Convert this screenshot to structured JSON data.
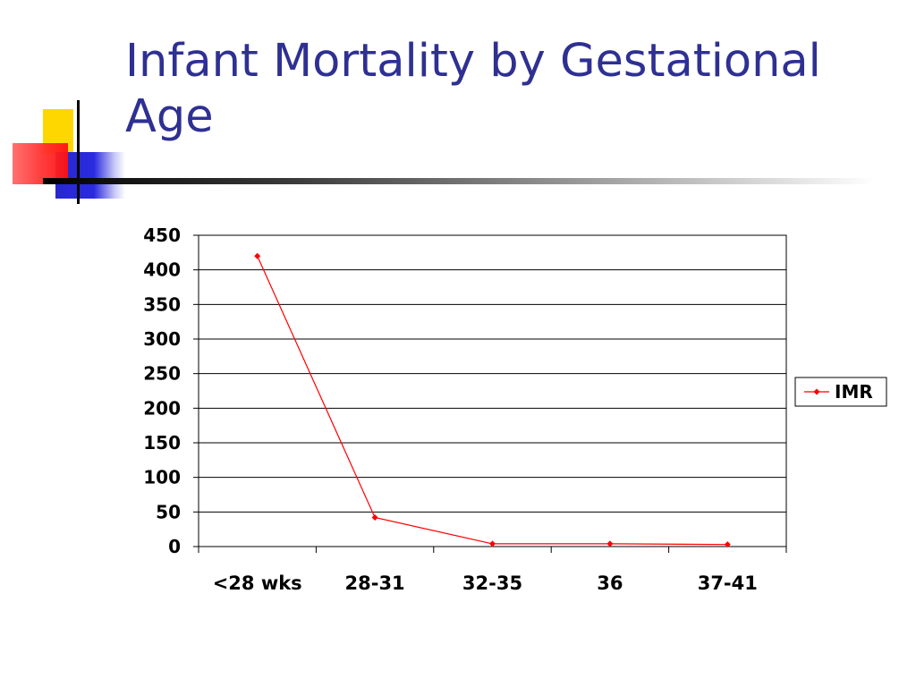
{
  "slide": {
    "title": "Infant Mortality by Gestational Age"
  },
  "chart_data": {
    "type": "line",
    "categories": [
      "<28 wks",
      "28-31",
      "32-35",
      "36",
      "37-41"
    ],
    "series": [
      {
        "name": "IMR",
        "values": [
          420,
          42,
          4,
          4,
          3
        ]
      }
    ],
    "ylim": [
      0,
      450
    ],
    "yticks": [
      0,
      50,
      100,
      150,
      200,
      250,
      300,
      350,
      400,
      450
    ],
    "grid": true,
    "legend": "right",
    "colors": {
      "series": "#ff0000",
      "title": "#2e3092"
    }
  }
}
